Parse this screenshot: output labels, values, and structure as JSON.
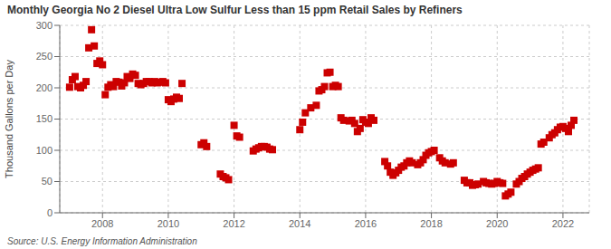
{
  "chart_data": {
    "type": "scatter",
    "title": "Monthly Georgia No 2 Diesel Ultra Low Sulfur Less than 15 ppm Retail Sales by Refiners",
    "y_label": "Thousand Gallons per Day",
    "source": "Source: U.S. Energy Information Administration",
    "color": "#cc0000",
    "marker": "square",
    "grid": true,
    "xlim": [
      2006.7,
      2022.8
    ],
    "xticks": [
      2008,
      2010,
      2012,
      2014,
      2016,
      2018,
      2020,
      2022
    ],
    "ylim": [
      0,
      300
    ],
    "yticks": [
      0,
      50,
      100,
      150,
      200,
      250,
      300
    ],
    "x": [
      2007.0,
      2007.083,
      2007.167,
      2007.25,
      2007.333,
      2007.417,
      2007.5,
      2007.583,
      2007.667,
      2007.75,
      2007.833,
      2007.917,
      2008.0,
      2008.083,
      2008.167,
      2008.25,
      2008.333,
      2008.417,
      2008.5,
      2008.583,
      2008.667,
      2008.75,
      2008.833,
      2008.917,
      2009.0,
      2009.083,
      2009.167,
      2009.25,
      2009.333,
      2009.417,
      2009.5,
      2009.583,
      2009.667,
      2009.75,
      2009.833,
      2009.917,
      2010.0,
      2010.083,
      2010.167,
      2010.25,
      2010.333,
      2010.417,
      2011.0,
      2011.083,
      2011.167,
      2011.583,
      2011.667,
      2011.75,
      2011.833,
      2012.0,
      2012.083,
      2012.167,
      2012.583,
      2012.667,
      2012.75,
      2012.833,
      2012.917,
      2013.0,
      2013.083,
      2013.167,
      2014.0,
      2014.083,
      2014.167,
      2014.333,
      2014.5,
      2014.583,
      2014.667,
      2014.75,
      2014.833,
      2014.917,
      2015.0,
      2015.083,
      2015.167,
      2015.25,
      2015.333,
      2015.5,
      2015.583,
      2015.667,
      2015.75,
      2015.833,
      2015.917,
      2016.0,
      2016.083,
      2016.167,
      2016.25,
      2016.583,
      2016.667,
      2016.75,
      2016.833,
      2016.917,
      2017.0,
      2017.083,
      2017.167,
      2017.25,
      2017.333,
      2017.417,
      2017.583,
      2017.667,
      2017.75,
      2017.833,
      2017.917,
      2018.0,
      2018.083,
      2018.25,
      2018.333,
      2018.417,
      2018.583,
      2018.667,
      2019.0,
      2019.083,
      2019.167,
      2019.25,
      2019.333,
      2019.417,
      2019.583,
      2019.667,
      2019.75,
      2019.833,
      2019.917,
      2020.0,
      2020.083,
      2020.167,
      2020.25,
      2020.333,
      2020.417,
      2020.583,
      2020.667,
      2020.75,
      2020.833,
      2020.917,
      2021.0,
      2021.083,
      2021.167,
      2021.25,
      2021.333,
      2021.417,
      2021.583,
      2021.667,
      2021.75,
      2021.833,
      2021.917,
      2022.0,
      2022.083,
      2022.167,
      2022.25,
      2022.333
    ],
    "values": [
      201,
      213,
      218,
      202,
      200,
      204,
      210,
      264,
      293,
      267,
      239,
      243,
      237,
      189,
      201,
      205,
      202,
      210,
      209,
      203,
      208,
      218,
      215,
      222,
      220,
      207,
      205,
      207,
      210,
      210,
      208,
      210,
      208,
      209,
      210,
      208,
      181,
      178,
      182,
      185,
      183,
      207,
      109,
      112,
      106,
      62,
      58,
      56,
      53,
      140,
      123,
      121,
      99,
      102,
      104,
      106,
      106,
      105,
      102,
      101,
      133,
      145,
      160,
      168,
      172,
      195,
      197,
      202,
      224,
      225,
      202,
      204,
      202,
      152,
      148,
      147,
      148,
      143,
      130,
      135,
      149,
      145,
      143,
      152,
      148,
      82,
      75,
      65,
      60,
      64,
      68,
      73,
      75,
      80,
      83,
      80,
      77,
      80,
      85,
      92,
      96,
      98,
      100,
      88,
      83,
      80,
      78,
      80,
      52,
      48,
      48,
      44,
      45,
      46,
      50,
      48,
      47,
      46,
      47,
      50,
      48,
      47,
      27,
      30,
      33,
      46,
      50,
      55,
      58,
      62,
      65,
      68,
      70,
      72,
      110,
      113,
      120,
      125,
      128,
      133,
      137,
      138,
      135,
      130,
      140,
      148
    ]
  }
}
